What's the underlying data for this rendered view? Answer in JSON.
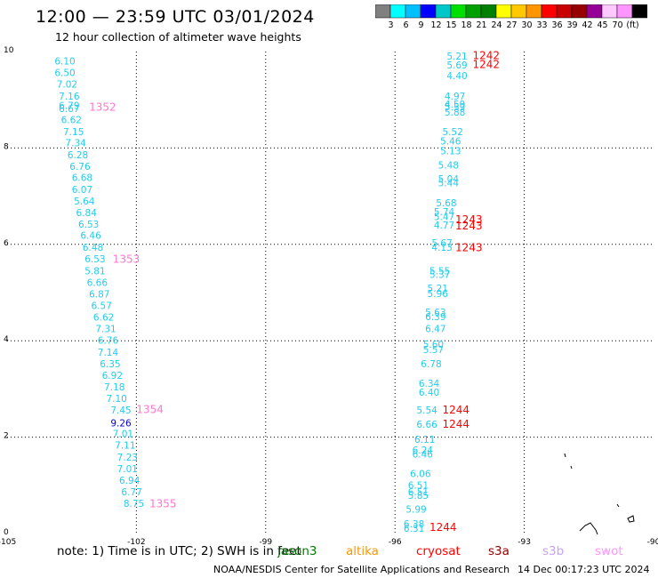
{
  "title": "12:00 — 23:59 UTC 03/01/2024",
  "subtitle": "12 hour collection of altimeter wave heights",
  "legend": {
    "colors": [
      "#808080",
      "#00ffff",
      "#00bfff",
      "#0000ff",
      "#00c8c8",
      "#00e000",
      "#00a000",
      "#008000",
      "#ffff00",
      "#ffc800",
      "#ff9600",
      "#ff0000",
      "#c80000",
      "#960000",
      "#960096",
      "#ffc8ff",
      "#ff96ff",
      "#000000"
    ],
    "labels": [
      "3",
      "6",
      "9",
      "12",
      "15",
      "18",
      "21",
      "24",
      "27",
      "30",
      "33",
      "36",
      "39",
      "42",
      "45",
      "70",
      "(ft)"
    ]
  },
  "footer": {
    "note": "note:  1) Time is in UTC;  2) SWH is in feet",
    "missions": [
      {
        "name": "jason3",
        "color": "#008000"
      },
      {
        "name": "altika",
        "color": "#ff9600"
      },
      {
        "name": "cryosat",
        "color": "#ff0000"
      },
      {
        "name": "s3a",
        "color": "#960000"
      },
      {
        "name": "s3b",
        "color": "#c8a0ff"
      },
      {
        "name": "swot",
        "color": "#ff96ff"
      }
    ],
    "source": "NOAA/NESDIS Center for Satellite Applications and Research",
    "timestamp": "14 Dec 00:17:23 UTC 2024"
  },
  "chart_data": {
    "type": "scatter",
    "xlim": [
      -105,
      -90
    ],
    "ylim": [
      0,
      10
    ],
    "x_ticks": [
      -105,
      -102,
      -99,
      -96,
      -93,
      -90
    ],
    "x_tick_labels": [
      "-105",
      "-102",
      "-99",
      "-96",
      "-93",
      "-90"
    ],
    "y_ticks": [
      0,
      2,
      4,
      6,
      8,
      10
    ],
    "y_tick_labels": [
      "0",
      "2",
      "4",
      "6",
      "8",
      "10"
    ],
    "grid": true,
    "series": [
      {
        "color": "#22ccee",
        "points": [
          {
            "x": -103.9,
            "y": 9.81,
            "label": "6.10"
          },
          {
            "x": -103.9,
            "y": 9.57,
            "label": "6.50"
          },
          {
            "x": -103.85,
            "y": 9.33,
            "label": "7.02"
          },
          {
            "x": -103.8,
            "y": 9.08,
            "label": "7.16"
          },
          {
            "x": -103.8,
            "y": 8.88,
            "label": "6.79"
          },
          {
            "x": -103.8,
            "y": 8.82,
            "label": "6.67"
          },
          {
            "x": -103.75,
            "y": 8.59,
            "label": "6.62"
          },
          {
            "x": -103.7,
            "y": 8.34,
            "label": "7.15"
          },
          {
            "x": -103.65,
            "y": 8.11,
            "label": "7.34"
          },
          {
            "x": -103.6,
            "y": 7.86,
            "label": "6.28"
          },
          {
            "x": -103.55,
            "y": 7.62,
            "label": "6.76"
          },
          {
            "x": -103.5,
            "y": 7.39,
            "label": "6.68"
          },
          {
            "x": -103.5,
            "y": 7.14,
            "label": "6.07"
          },
          {
            "x": -103.45,
            "y": 6.9,
            "label": "5.64"
          },
          {
            "x": -103.4,
            "y": 6.66,
            "label": "6.84"
          },
          {
            "x": -103.35,
            "y": 6.42,
            "label": "6.53"
          },
          {
            "x": -103.3,
            "y": 6.19,
            "label": "6.46"
          },
          {
            "x": -103.25,
            "y": 5.94,
            "label": "6.48"
          },
          {
            "x": -103.2,
            "y": 5.7,
            "label": "6.53"
          },
          {
            "x": -103.2,
            "y": 5.45,
            "label": "5.81"
          },
          {
            "x": -103.15,
            "y": 5.21,
            "label": "6.66"
          },
          {
            "x": -103.1,
            "y": 4.97,
            "label": "6.87"
          },
          {
            "x": -103.05,
            "y": 4.73,
            "label": "6.57"
          },
          {
            "x": -103.0,
            "y": 4.49,
            "label": "6.62"
          },
          {
            "x": -102.95,
            "y": 4.25,
            "label": "7.31"
          },
          {
            "x": -102.9,
            "y": 4.01,
            "label": "6.76"
          },
          {
            "x": -102.9,
            "y": 3.76,
            "label": "7.14"
          },
          {
            "x": -102.85,
            "y": 3.52,
            "label": "6.35"
          },
          {
            "x": -102.8,
            "y": 3.28,
            "label": "6.92"
          },
          {
            "x": -102.75,
            "y": 3.04,
            "label": "7.18"
          },
          {
            "x": -102.7,
            "y": 2.8,
            "label": "7.10"
          },
          {
            "x": -102.6,
            "y": 2.56,
            "label": "7.45"
          },
          {
            "x": -102.55,
            "y": 2.08,
            "label": "7.01"
          },
          {
            "x": -102.5,
            "y": 1.84,
            "label": "7.11"
          },
          {
            "x": -102.45,
            "y": 1.59,
            "label": "7.23"
          },
          {
            "x": -102.45,
            "y": 1.35,
            "label": "7.01"
          },
          {
            "x": -102.4,
            "y": 1.11,
            "label": "6.94"
          },
          {
            "x": -102.35,
            "y": 0.87,
            "label": "6.77"
          },
          {
            "x": -102.3,
            "y": 0.63,
            "label": "8.75"
          },
          {
            "x": -94.8,
            "y": 9.91,
            "label": "5.21"
          },
          {
            "x": -94.8,
            "y": 9.72,
            "label": "5.69"
          },
          {
            "x": -94.8,
            "y": 9.5,
            "label": "4.40"
          },
          {
            "x": -94.85,
            "y": 9.08,
            "label": "4.97"
          },
          {
            "x": -94.85,
            "y": 8.91,
            "label": "4.59"
          },
          {
            "x": -94.85,
            "y": 8.86,
            "label": "5.59"
          },
          {
            "x": -94.85,
            "y": 8.75,
            "label": "5.88"
          },
          {
            "x": -94.9,
            "y": 8.34,
            "label": "5.52"
          },
          {
            "x": -94.95,
            "y": 8.15,
            "label": "5.46"
          },
          {
            "x": -94.95,
            "y": 7.94,
            "label": "5.13"
          },
          {
            "x": -95.0,
            "y": 7.65,
            "label": "5.48"
          },
          {
            "x": -95.0,
            "y": 7.36,
            "label": "5.04"
          },
          {
            "x": -95.0,
            "y": 7.28,
            "label": "5.44"
          },
          {
            "x": -95.05,
            "y": 6.86,
            "label": "5.68"
          },
          {
            "x": -95.1,
            "y": 6.68,
            "label": "5.74"
          },
          {
            "x": -95.1,
            "y": 6.58,
            "label": "5.47"
          },
          {
            "x": -95.1,
            "y": 6.4,
            "label": "4.77"
          },
          {
            "x": -95.15,
            "y": 6.03,
            "label": "5.67"
          },
          {
            "x": -95.15,
            "y": 5.94,
            "label": "4.13"
          },
          {
            "x": -95.2,
            "y": 5.45,
            "label": "5.55"
          },
          {
            "x": -95.2,
            "y": 5.38,
            "label": "5.37"
          },
          {
            "x": -95.25,
            "y": 5.09,
            "label": "5.21"
          },
          {
            "x": -95.25,
            "y": 4.98,
            "label": "5.96"
          },
          {
            "x": -95.3,
            "y": 4.59,
            "label": "5.63"
          },
          {
            "x": -95.3,
            "y": 4.5,
            "label": "6.39"
          },
          {
            "x": -95.3,
            "y": 4.25,
            "label": "6.47"
          },
          {
            "x": -95.35,
            "y": 3.93,
            "label": "5.60"
          },
          {
            "x": -95.35,
            "y": 3.82,
            "label": "5.57"
          },
          {
            "x": -95.4,
            "y": 3.52,
            "label": "6.78"
          },
          {
            "x": -95.45,
            "y": 3.12,
            "label": "6.34"
          },
          {
            "x": -95.45,
            "y": 2.93,
            "label": "6.40"
          },
          {
            "x": -95.5,
            "y": 2.56,
            "label": "5.54"
          },
          {
            "x": -95.5,
            "y": 2.27,
            "label": "6.66"
          },
          {
            "x": -95.55,
            "y": 1.96,
            "label": "6.11"
          },
          {
            "x": -95.6,
            "y": 1.73,
            "label": "6.24"
          },
          {
            "x": -95.6,
            "y": 1.65,
            "label": "6.46"
          },
          {
            "x": -95.65,
            "y": 1.25,
            "label": "6.06"
          },
          {
            "x": -95.7,
            "y": 1.01,
            "label": "6.51"
          },
          {
            "x": -95.7,
            "y": 0.87,
            "label": "6.51"
          },
          {
            "x": -95.7,
            "y": 0.79,
            "label": "5.85"
          },
          {
            "x": -95.75,
            "y": 0.51,
            "label": "5.99"
          },
          {
            "x": -95.8,
            "y": 0.2,
            "label": "6.38"
          },
          {
            "x": -95.8,
            "y": 0.11,
            "label": "6.31"
          }
        ]
      },
      {
        "color": "#0000dd",
        "points": [
          {
            "x": -102.6,
            "y": 2.3,
            "label": "9.26"
          }
        ]
      },
      {
        "color": "#ff77cc",
        "points": [
          {
            "x": -103.1,
            "y": 8.85,
            "label": "1352"
          },
          {
            "x": -102.55,
            "y": 5.69,
            "label": "1353"
          },
          {
            "x": -102.0,
            "y": 2.57,
            "label": "1354"
          },
          {
            "x": -101.7,
            "y": 0.62,
            "label": "1355"
          }
        ]
      },
      {
        "color": "#ff0000",
        "points": [
          {
            "x": -94.2,
            "y": 9.92,
            "label": "1242"
          },
          {
            "x": -94.2,
            "y": 9.73,
            "label": "1242"
          },
          {
            "x": -94.6,
            "y": 6.51,
            "label": "1243"
          },
          {
            "x": -94.6,
            "y": 6.38,
            "label": "1243"
          },
          {
            "x": -94.6,
            "y": 5.93,
            "label": "1243"
          },
          {
            "x": -94.9,
            "y": 2.56,
            "label": "1244"
          },
          {
            "x": -94.9,
            "y": 2.27,
            "label": "1244"
          },
          {
            "x": -95.2,
            "y": 0.13,
            "label": "1244"
          }
        ]
      }
    ]
  }
}
